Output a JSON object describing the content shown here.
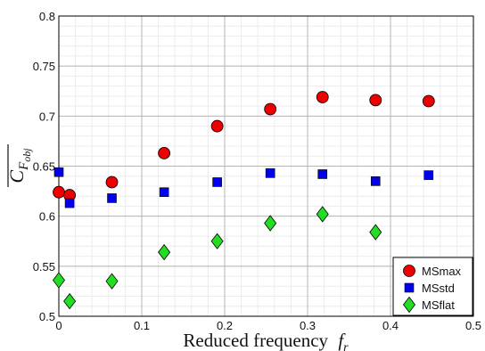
{
  "chart_data": {
    "type": "scatter",
    "title": "",
    "xlabel": "Reduced frequency",
    "xlabel_symbol": "f",
    "xlabel_subscript": "r",
    "ylabel_symbol": "C",
    "ylabel_subscript": "F",
    "ylabel_subsubscript": "obj",
    "xlim": [
      0,
      0.5
    ],
    "ylim": [
      0.5,
      0.8
    ],
    "xticks": [
      "0",
      "0.1",
      "0.2",
      "0.3",
      "0.4",
      "0.5"
    ],
    "yticks": [
      "0.5",
      "0.55",
      "0.6",
      "0.65",
      "0.7",
      "0.75",
      "0.8"
    ],
    "grid": true,
    "minor_grid": true,
    "legend_position": "bottom-right",
    "series": [
      {
        "name": "MSmax",
        "marker": "circle",
        "color": "#ee0000",
        "x": [
          0.0,
          0.013,
          0.064,
          0.127,
          0.191,
          0.255,
          0.318,
          0.382,
          0.446
        ],
        "y": [
          0.624,
          0.621,
          0.634,
          0.663,
          0.69,
          0.707,
          0.719,
          0.716,
          0.715
        ]
      },
      {
        "name": "MSstd",
        "marker": "square",
        "color": "#0000ee",
        "x": [
          0.0,
          0.013,
          0.064,
          0.127,
          0.191,
          0.255,
          0.318,
          0.382,
          0.446
        ],
        "y": [
          0.644,
          0.613,
          0.618,
          0.624,
          0.634,
          0.643,
          0.642,
          0.635,
          0.641
        ]
      },
      {
        "name": "MSflat",
        "marker": "diamond",
        "color": "#22dd22",
        "x": [
          0.0,
          0.013,
          0.064,
          0.127,
          0.191,
          0.255,
          0.318,
          0.382
        ],
        "y": [
          0.536,
          0.515,
          0.535,
          0.564,
          0.575,
          0.593,
          0.602,
          0.584
        ]
      }
    ]
  }
}
